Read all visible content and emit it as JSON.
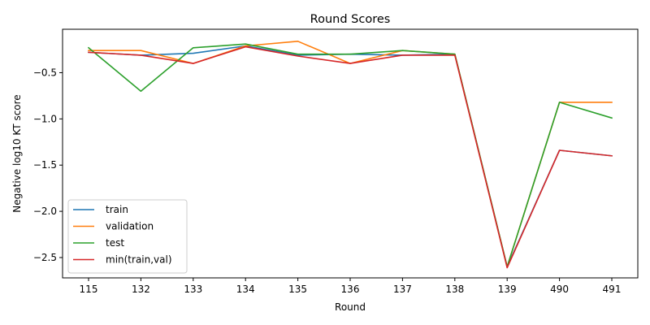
{
  "chart_data": {
    "type": "line",
    "title": "Round Scores",
    "xlabel": "Round",
    "ylabel": "Negative log10 KT score",
    "categories": [
      "115",
      "132",
      "133",
      "134",
      "135",
      "136",
      "137",
      "138",
      "139",
      "490",
      "491"
    ],
    "ylim": [
      -2.72,
      -0.03
    ],
    "yticks": [
      -2.5,
      -2.0,
      -1.5,
      -1.0,
      -0.5
    ],
    "ytick_labels": [
      "−2.5",
      "−2.0",
      "−1.5",
      "−1.0",
      "−0.5"
    ],
    "grid": false,
    "legend_position": "lower-left",
    "series": [
      {
        "name": "train",
        "color": "#1f77b4",
        "values": [
          -0.28,
          -0.31,
          -0.29,
          -0.21,
          -0.31,
          -0.3,
          -0.31,
          -0.3,
          -2.6,
          -1.34,
          -1.4
        ]
      },
      {
        "name": "validation",
        "color": "#ff7f0e",
        "values": [
          -0.26,
          -0.26,
          -0.4,
          -0.21,
          -0.16,
          -0.4,
          -0.26,
          -0.3,
          -2.6,
          -0.82,
          -0.82
        ]
      },
      {
        "name": "test",
        "color": "#2ca02c",
        "values": [
          -0.23,
          -0.7,
          -0.23,
          -0.19,
          -0.3,
          -0.3,
          -0.26,
          -0.3,
          -2.6,
          -0.82,
          -0.99
        ]
      },
      {
        "name": "min(train,val)",
        "color": "#d62728",
        "values": [
          -0.28,
          -0.31,
          -0.4,
          -0.22,
          -0.32,
          -0.4,
          -0.31,
          -0.31,
          -2.61,
          -1.34,
          -1.4
        ]
      }
    ]
  }
}
